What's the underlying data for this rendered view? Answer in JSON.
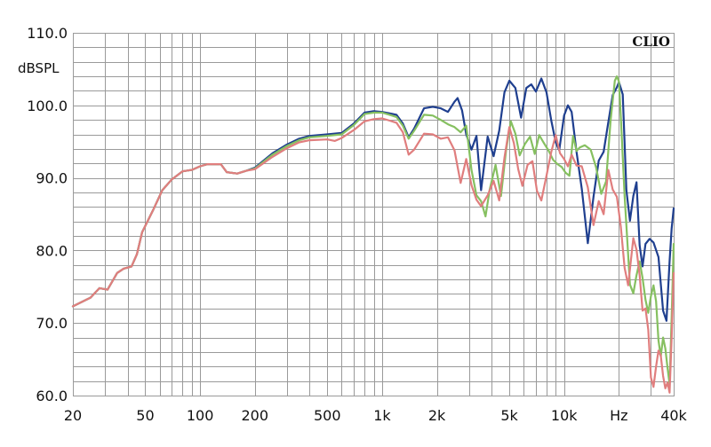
{
  "chart_data": {
    "type": "line",
    "title": "",
    "brand": "CLIO",
    "xlabel": "Hz",
    "ylabel": "dBSPL",
    "x_scale": "log",
    "xlim": [
      20,
      40000
    ],
    "ylim": [
      60,
      110
    ],
    "grid": true,
    "legend": "none",
    "y_ticks": [
      "60.0",
      "70.0",
      "80.0",
      "90.0",
      "100.0",
      "110.0"
    ],
    "y_tick_values": [
      60,
      70,
      80,
      90,
      100,
      110
    ],
    "x_tick_labels": [
      {
        "value": 20,
        "label": "20"
      },
      {
        "value": 50,
        "label": "50"
      },
      {
        "value": 100,
        "label": "100"
      },
      {
        "value": 200,
        "label": "200"
      },
      {
        "value": 500,
        "label": "500"
      },
      {
        "value": 1000,
        "label": "1k"
      },
      {
        "value": 2000,
        "label": "2k"
      },
      {
        "value": 5000,
        "label": "5k"
      },
      {
        "value": 10000,
        "label": "10k"
      },
      {
        "value": 20000,
        "label": "Hz"
      },
      {
        "value": 40000,
        "label": "40k"
      }
    ],
    "series": [
      {
        "color": "#1f3f8f",
        "points": [
          [
            20,
            72.3
          ],
          [
            25,
            73.5
          ],
          [
            28,
            74.8
          ],
          [
            31,
            74.6
          ],
          [
            35,
            76.9
          ],
          [
            38,
            77.5
          ],
          [
            42,
            77.8
          ],
          [
            45,
            79.5
          ],
          [
            48,
            82.5
          ],
          [
            55,
            85.5
          ],
          [
            62,
            88.3
          ],
          [
            70,
            89.8
          ],
          [
            80,
            90.9
          ],
          [
            90,
            91.1
          ],
          [
            100,
            91.6
          ],
          [
            110,
            91.9
          ],
          [
            130,
            91.9
          ],
          [
            140,
            90.8
          ],
          [
            160,
            90.6
          ],
          [
            180,
            91.0
          ],
          [
            200,
            91.4
          ],
          [
            250,
            93.4
          ],
          [
            300,
            94.6
          ],
          [
            350,
            95.4
          ],
          [
            400,
            95.8
          ],
          [
            500,
            96.0
          ],
          [
            600,
            96.2
          ],
          [
            700,
            97.5
          ],
          [
            800,
            99.0
          ],
          [
            900,
            99.2
          ],
          [
            1000,
            99.1
          ],
          [
            1100,
            98.9
          ],
          [
            1200,
            98.7
          ],
          [
            1300,
            97.5
          ],
          [
            1400,
            95.6
          ],
          [
            1500,
            96.8
          ],
          [
            1700,
            99.6
          ],
          [
            1900,
            99.8
          ],
          [
            2100,
            99.6
          ],
          [
            2300,
            99.1
          ],
          [
            2500,
            100.5
          ],
          [
            2600,
            101.0
          ],
          [
            2750,
            99.3
          ],
          [
            2900,
            96.0
          ],
          [
            3100,
            93.9
          ],
          [
            3300,
            95.8
          ],
          [
            3500,
            88.3
          ],
          [
            3800,
            95.7
          ],
          [
            4100,
            93.0
          ],
          [
            4400,
            96.5
          ],
          [
            4700,
            101.8
          ],
          [
            5000,
            103.4
          ],
          [
            5400,
            102.4
          ],
          [
            5800,
            98.3
          ],
          [
            6200,
            102.4
          ],
          [
            6600,
            102.9
          ],
          [
            7000,
            101.9
          ],
          [
            7500,
            103.7
          ],
          [
            8000,
            101.8
          ],
          [
            8500,
            97.9
          ],
          [
            9000,
            94.9
          ],
          [
            9400,
            93.8
          ],
          [
            10000,
            98.6
          ],
          [
            10500,
            100.0
          ],
          [
            11000,
            99.1
          ],
          [
            11700,
            93.6
          ],
          [
            12500,
            88.5
          ],
          [
            13500,
            81.0
          ],
          [
            14500,
            87.4
          ],
          [
            15500,
            92.4
          ],
          [
            16500,
            93.6
          ],
          [
            17500,
            97.7
          ],
          [
            18500,
            101.4
          ],
          [
            19500,
            102.5
          ],
          [
            20000,
            103.2
          ],
          [
            21000,
            101.5
          ],
          [
            22000,
            88.3
          ],
          [
            23000,
            84.1
          ],
          [
            24000,
            87.5
          ],
          [
            25000,
            89.4
          ],
          [
            26000,
            80.7
          ],
          [
            27000,
            77.8
          ],
          [
            28000,
            80.9
          ],
          [
            29500,
            81.6
          ],
          [
            31000,
            81.1
          ],
          [
            33000,
            79.1
          ],
          [
            35000,
            71.7
          ],
          [
            36500,
            70.3
          ],
          [
            38000,
            78.5
          ],
          [
            39000,
            83.0
          ],
          [
            40000,
            85.8
          ]
        ]
      },
      {
        "color": "#86c060",
        "points": [
          [
            20,
            72.3
          ],
          [
            25,
            73.5
          ],
          [
            28,
            74.8
          ],
          [
            31,
            74.6
          ],
          [
            35,
            76.9
          ],
          [
            38,
            77.5
          ],
          [
            42,
            77.8
          ],
          [
            45,
            79.5
          ],
          [
            48,
            82.5
          ],
          [
            55,
            85.5
          ],
          [
            62,
            88.3
          ],
          [
            70,
            89.8
          ],
          [
            80,
            90.9
          ],
          [
            90,
            91.1
          ],
          [
            100,
            91.6
          ],
          [
            110,
            91.9
          ],
          [
            130,
            91.9
          ],
          [
            140,
            90.8
          ],
          [
            160,
            90.6
          ],
          [
            180,
            91.0
          ],
          [
            200,
            91.3
          ],
          [
            250,
            93.2
          ],
          [
            300,
            94.4
          ],
          [
            350,
            95.2
          ],
          [
            400,
            95.6
          ],
          [
            500,
            95.8
          ],
          [
            600,
            96.0
          ],
          [
            700,
            97.3
          ],
          [
            800,
            98.8
          ],
          [
            900,
            99.0
          ],
          [
            1000,
            99.0
          ],
          [
            1100,
            98.7
          ],
          [
            1200,
            98.4
          ],
          [
            1300,
            97.2
          ],
          [
            1400,
            95.4
          ],
          [
            1500,
            96.5
          ],
          [
            1700,
            98.7
          ],
          [
            1900,
            98.6
          ],
          [
            2100,
            98.0
          ],
          [
            2300,
            97.4
          ],
          [
            2500,
            97.0
          ],
          [
            2700,
            96.3
          ],
          [
            2900,
            97.2
          ],
          [
            3100,
            91.1
          ],
          [
            3300,
            87.6
          ],
          [
            3500,
            86.8
          ],
          [
            3700,
            84.7
          ],
          [
            3900,
            88.4
          ],
          [
            4200,
            91.8
          ],
          [
            4500,
            87.5
          ],
          [
            4800,
            93.8
          ],
          [
            5100,
            97.8
          ],
          [
            5400,
            96.1
          ],
          [
            5700,
            93.1
          ],
          [
            6100,
            94.7
          ],
          [
            6500,
            95.7
          ],
          [
            6900,
            93.3
          ],
          [
            7300,
            95.9
          ],
          [
            7700,
            94.9
          ],
          [
            8200,
            93.8
          ],
          [
            8700,
            92.5
          ],
          [
            9200,
            91.9
          ],
          [
            9700,
            91.5
          ],
          [
            10200,
            90.7
          ],
          [
            10700,
            90.3
          ],
          [
            11200,
            95.8
          ],
          [
            11700,
            93.7
          ],
          [
            12200,
            94.2
          ],
          [
            13000,
            94.5
          ],
          [
            14000,
            93.9
          ],
          [
            15000,
            91.4
          ],
          [
            16000,
            87.8
          ],
          [
            17000,
            89.5
          ],
          [
            18000,
            97.9
          ],
          [
            19000,
            103.4
          ],
          [
            19500,
            104.0
          ],
          [
            20000,
            103.3
          ],
          [
            20500,
            98.5
          ],
          [
            21500,
            87.5
          ],
          [
            23000,
            75.3
          ],
          [
            24000,
            74.1
          ],
          [
            25000,
            76.6
          ],
          [
            26000,
            78.5
          ],
          [
            27000,
            76.2
          ],
          [
            28000,
            73.2
          ],
          [
            29000,
            71.4
          ],
          [
            30000,
            73.7
          ],
          [
            31000,
            75.2
          ],
          [
            32000,
            73.0
          ],
          [
            33000,
            67.6
          ],
          [
            34000,
            65.4
          ],
          [
            35000,
            68.0
          ],
          [
            36000,
            66.5
          ],
          [
            37000,
            63.8
          ],
          [
            38000,
            61.6
          ],
          [
            39000,
            70.7
          ],
          [
            40000,
            80.9
          ]
        ]
      },
      {
        "color": "#e07e7e",
        "points": [
          [
            20,
            72.3
          ],
          [
            25,
            73.5
          ],
          [
            28,
            74.8
          ],
          [
            31,
            74.6
          ],
          [
            35,
            76.9
          ],
          [
            38,
            77.5
          ],
          [
            42,
            77.8
          ],
          [
            45,
            79.5
          ],
          [
            48,
            82.5
          ],
          [
            55,
            85.5
          ],
          [
            62,
            88.3
          ],
          [
            70,
            89.8
          ],
          [
            80,
            90.9
          ],
          [
            90,
            91.1
          ],
          [
            100,
            91.6
          ],
          [
            110,
            91.9
          ],
          [
            130,
            91.9
          ],
          [
            140,
            90.8
          ],
          [
            160,
            90.6
          ],
          [
            180,
            91.0
          ],
          [
            200,
            91.2
          ],
          [
            250,
            92.9
          ],
          [
            300,
            94.1
          ],
          [
            350,
            94.9
          ],
          [
            400,
            95.2
          ],
          [
            500,
            95.3
          ],
          [
            550,
            95.1
          ],
          [
            600,
            95.5
          ],
          [
            700,
            96.6
          ],
          [
            800,
            97.8
          ],
          [
            900,
            98.1
          ],
          [
            1000,
            98.2
          ],
          [
            1100,
            97.9
          ],
          [
            1200,
            97.6
          ],
          [
            1300,
            96.3
          ],
          [
            1400,
            93.2
          ],
          [
            1500,
            93.9
          ],
          [
            1700,
            96.1
          ],
          [
            1900,
            96.0
          ],
          [
            2100,
            95.4
          ],
          [
            2300,
            95.6
          ],
          [
            2500,
            93.8
          ],
          [
            2700,
            89.3
          ],
          [
            2900,
            92.6
          ],
          [
            3100,
            89.0
          ],
          [
            3300,
            87.0
          ],
          [
            3500,
            86.1
          ],
          [
            3800,
            87.6
          ],
          [
            4100,
            89.6
          ],
          [
            4400,
            86.9
          ],
          [
            4700,
            92.8
          ],
          [
            5000,
            97.0
          ],
          [
            5300,
            94.8
          ],
          [
            5600,
            91.2
          ],
          [
            5900,
            88.9
          ],
          [
            6300,
            91.8
          ],
          [
            6700,
            92.3
          ],
          [
            7100,
            88.2
          ],
          [
            7500,
            86.9
          ],
          [
            8000,
            90.3
          ],
          [
            8500,
            93.6
          ],
          [
            9000,
            95.9
          ],
          [
            9500,
            93.4
          ],
          [
            10000,
            92.6
          ],
          [
            10500,
            91.6
          ],
          [
            11000,
            93.2
          ],
          [
            11700,
            91.7
          ],
          [
            12500,
            91.6
          ],
          [
            13500,
            88.7
          ],
          [
            14500,
            83.5
          ],
          [
            15500,
            86.8
          ],
          [
            16500,
            85.0
          ],
          [
            17500,
            91.1
          ],
          [
            18500,
            88.4
          ],
          [
            19500,
            87.4
          ],
          [
            20500,
            83.3
          ],
          [
            21500,
            77.6
          ],
          [
            22500,
            75.2
          ],
          [
            24000,
            81.7
          ],
          [
            25000,
            80.1
          ],
          [
            26000,
            76.6
          ],
          [
            27000,
            71.7
          ],
          [
            28000,
            72.0
          ],
          [
            29000,
            69.1
          ],
          [
            30000,
            62.5
          ],
          [
            31000,
            61.2
          ],
          [
            32000,
            64.0
          ],
          [
            33000,
            66.2
          ],
          [
            34000,
            65.5
          ],
          [
            35000,
            62.7
          ],
          [
            36000,
            61.0
          ],
          [
            37000,
            61.8
          ],
          [
            38000,
            60.4
          ],
          [
            39000,
            67.9
          ],
          [
            40000,
            76.9
          ]
        ]
      }
    ]
  }
}
